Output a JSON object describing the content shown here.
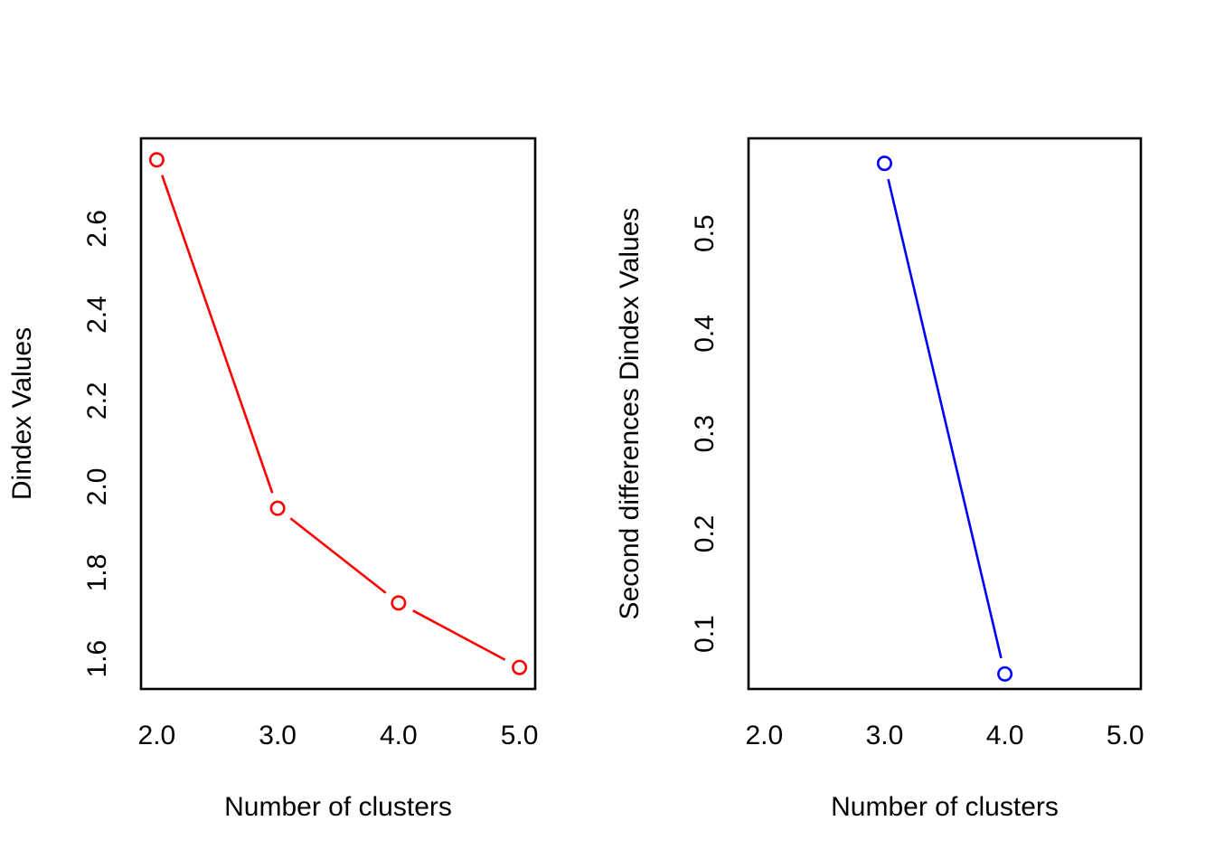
{
  "figure": {
    "background": "#ffffff",
    "foreground": "#000000",
    "description": "Two side-by-side R base-graphics line plots of NbClust Dindex diagnostics"
  },
  "chart_data": [
    {
      "type": "line",
      "title": "",
      "xlabel": "Number of clusters",
      "ylabel": "Dindex Values",
      "x": [
        2,
        3,
        4,
        5
      ],
      "y": [
        2.76,
        1.95,
        1.73,
        1.58
      ],
      "series_name": "Dindex",
      "color": "#ff0000",
      "marker": "open-circle",
      "line_style": "solid",
      "plot_type_r": "type=b (points joined by lines with gaps)",
      "xticks": {
        "values": [
          2,
          3,
          4,
          5
        ],
        "labels": [
          "2.0",
          "3.0",
          "4.0",
          "5.0"
        ]
      },
      "yticks": {
        "values": [
          1.6,
          1.8,
          2.0,
          2.2,
          2.4,
          2.6
        ],
        "labels": [
          "1.6",
          "1.8",
          "2.0",
          "2.2",
          "2.4",
          "2.6"
        ]
      },
      "xlim": [
        1.87,
        5.13
      ],
      "ylim": [
        1.53,
        2.81
      ],
      "grid": false,
      "legend": null
    },
    {
      "type": "line",
      "title": "",
      "xlabel": "Number of clusters",
      "ylabel": "Second differences Dindex Values",
      "x": [
        3,
        4
      ],
      "y": [
        0.57,
        0.06
      ],
      "series_name": "Second differences Dindex",
      "color": "#0000ff",
      "marker": "open-circle",
      "line_style": "solid",
      "plot_type_r": "type=b (points joined by lines with gaps)",
      "xticks": {
        "values": [
          2,
          3,
          4,
          5
        ],
        "labels": [
          "2.0",
          "3.0",
          "4.0",
          "5.0"
        ]
      },
      "yticks": {
        "values": [
          0.1,
          0.2,
          0.3,
          0.4,
          0.5
        ],
        "labels": [
          "0.1",
          "0.2",
          "0.3",
          "0.4",
          "0.5"
        ]
      },
      "xlim": [
        1.87,
        5.13
      ],
      "ylim": [
        0.045,
        0.595
      ],
      "grid": false,
      "legend": null
    }
  ]
}
